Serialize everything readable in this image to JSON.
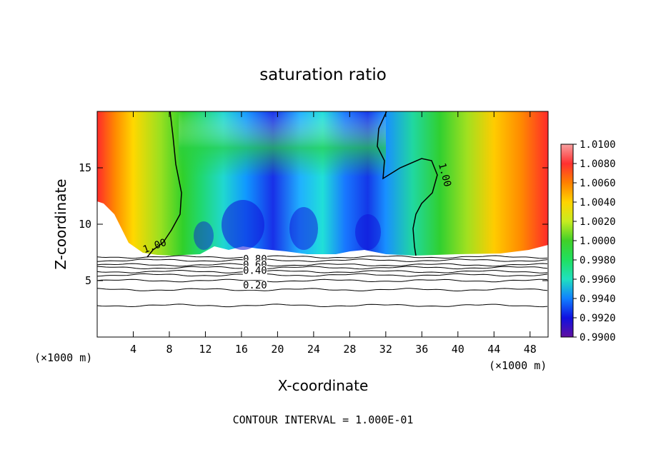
{
  "chart_data": {
    "type": "heatmap",
    "title": "saturation ratio",
    "xlabel": "X-coordinate",
    "ylabel": "Z-coordinate",
    "x_unit_label": "(×1000 m)",
    "z_unit_label": "(×1000 m)",
    "xlim": [
      0,
      50
    ],
    "ylim": [
      0,
      20
    ],
    "x_ticks": [
      4,
      8,
      12,
      16,
      20,
      24,
      28,
      32,
      36,
      40,
      44,
      48
    ],
    "y_ticks": [
      5,
      10,
      15
    ],
    "footer": "CONTOUR INTERVAL = 1.000E-01",
    "colorbar": {
      "ticks": [
        "1.0100",
        "1.0080",
        "1.0060",
        "1.0040",
        "1.0020",
        "1.0000",
        "0.9980",
        "0.9960",
        "0.9940",
        "0.9920",
        "0.9900"
      ],
      "colors": [
        "#f7a0a0",
        "#ff3030",
        "#ff8000",
        "#ffd400",
        "#c8ec20",
        "#40d028",
        "#20e060",
        "#20e0c0",
        "#1080ff",
        "#1010e0",
        "#6010a0"
      ]
    },
    "contour_labels": [
      {
        "text": "1.00",
        "x": 6.5,
        "z": 7.8
      },
      {
        "text": "1.00",
        "x": 38.2,
        "z": 14.3
      },
      {
        "text": "0.80",
        "x": 17.5,
        "z": 6.6
      },
      {
        "text": "0.60",
        "x": 17.5,
        "z": 6.1
      },
      {
        "text": "0.40",
        "x": 17.5,
        "z": 5.6
      },
      {
        "text": "0.20",
        "x": 17.5,
        "z": 4.3
      }
    ],
    "contour_levels_below": [
      {
        "level": 0.9,
        "z": 7.1
      },
      {
        "level": 0.8,
        "z": 6.8
      },
      {
        "level": 0.7,
        "z": 6.4
      },
      {
        "level": 0.6,
        "z": 6.15
      },
      {
        "level": 0.5,
        "z": 5.8
      },
      {
        "level": 0.4,
        "z": 5.5
      },
      {
        "level": 0.3,
        "z": 5.0
      },
      {
        "level": 0.2,
        "z": 4.2
      },
      {
        "level": 0.1,
        "z": 2.8
      }
    ]
  }
}
